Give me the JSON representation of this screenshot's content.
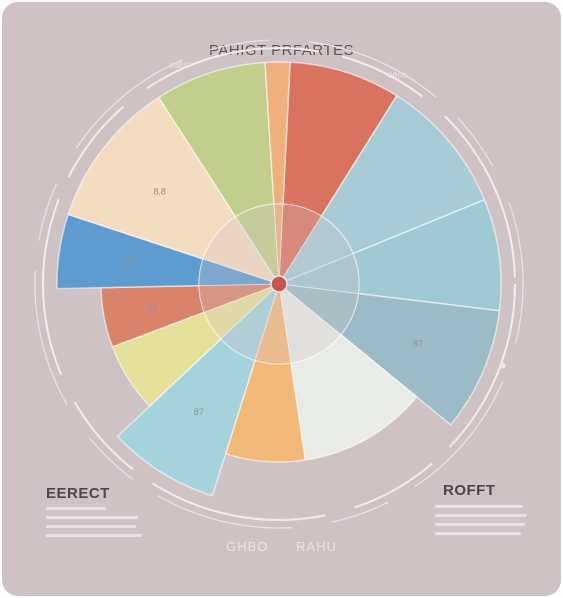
{
  "chart_data": {
    "type": "pie",
    "title": "PAHIGT PRFARTES",
    "slices": [
      {
        "key": "red",
        "label": "",
        "value": 9,
        "ring": "outer",
        "color": "#d9735f"
      },
      {
        "key": "blue-light",
        "label": "",
        "value": 11,
        "ring": "outer",
        "color": "#a7ccd6"
      },
      {
        "key": "teal",
        "label": "",
        "value": 9,
        "ring": "outer",
        "color": "#9fc9d3"
      },
      {
        "key": "grey-blue",
        "label": "8?",
        "value": 10,
        "ring": "outer",
        "color": "#9bbcc6"
      },
      {
        "key": "cream",
        "label": "",
        "value": 13,
        "ring": "mid",
        "color": "#e9ece6"
      },
      {
        "key": "orange",
        "label": "",
        "value": 8,
        "ring": "mid",
        "color": "#f3b978"
      },
      {
        "key": "sky",
        "label": "87",
        "value": 9,
        "ring": "outer",
        "color": "#a4d3db"
      },
      {
        "key": "yellow",
        "label": "",
        "value": 7,
        "ring": "mid",
        "color": "#e6e19a"
      },
      {
        "key": "terracotta",
        "label": "68",
        "value": 6,
        "ring": "mid",
        "color": "#d9836b"
      },
      {
        "key": "blue",
        "label": "08",
        "value": 6,
        "ring": "outer",
        "color": "#5e9bd1"
      },
      {
        "key": "peach",
        "label": "8.8",
        "value": 12,
        "ring": "outer",
        "color": "#f3dcc0"
      },
      {
        "key": "olive",
        "label": "",
        "value": 9,
        "ring": "outer",
        "color": "#c2cf8c"
      },
      {
        "key": "apricot",
        "label": "",
        "value": 2,
        "ring": "outer",
        "color": "#f0b07e"
      }
    ],
    "rim_labels": [
      "GBEIO",
      "OBSO"
    ],
    "legend_left": {
      "title": "EERECT"
    },
    "legend_right": {
      "title": "ROFFT"
    },
    "footer": {
      "left": "GHBO",
      "right": "RAHU"
    }
  }
}
